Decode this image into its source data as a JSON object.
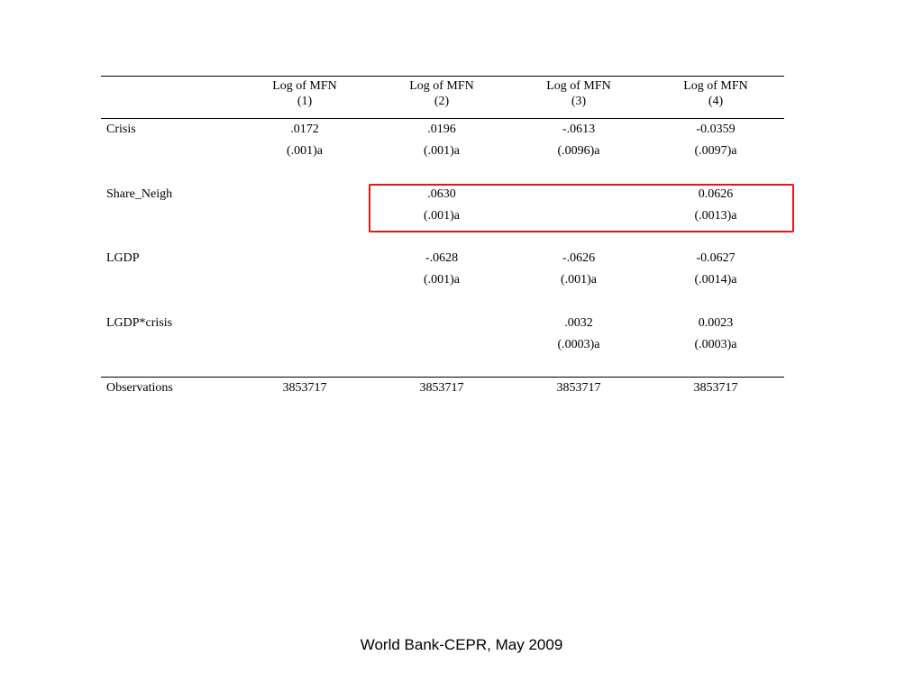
{
  "table": {
    "columns": [
      {
        "title": "Log of MFN",
        "number": "(1)"
      },
      {
        "title": "Log of MFN",
        "number": "(2)"
      },
      {
        "title": "Log of MFN",
        "number": "(3)"
      },
      {
        "title": "Log of MFN",
        "number": "(4)"
      }
    ],
    "rows": [
      {
        "label": "Crisis",
        "coef": [
          ".0172",
          ".0196",
          "-.0613",
          "-0.0359"
        ],
        "se": [
          "(.001)a",
          "(.001)a",
          "(.0096)a",
          "(.0097)a"
        ]
      },
      {
        "label": "Share_Neigh",
        "coef": [
          "",
          ".0630",
          "",
          "0.0626"
        ],
        "se": [
          "",
          "(.001)a",
          "",
          "(.0013)a"
        ]
      },
      {
        "label": "LGDP",
        "coef": [
          "",
          "-.0628",
          "-.0626",
          "-0.0627"
        ],
        "se": [
          "",
          "(.001)a",
          "(.001)a",
          "(.0014)a"
        ]
      },
      {
        "label": "LGDP*crisis",
        "coef": [
          "",
          "",
          ".0032",
          "0.0023"
        ],
        "se": [
          "",
          "",
          "(.0003)a",
          "(.0003)a"
        ]
      }
    ],
    "observations": {
      "label": "Observations",
      "values": [
        "3853717",
        "3853717",
        "3853717",
        "3853717"
      ]
    }
  },
  "highlight": {
    "row": "Share_Neigh",
    "color": "#e8131b"
  },
  "footer": {
    "text": "World Bank-CEPR, May 2009"
  }
}
